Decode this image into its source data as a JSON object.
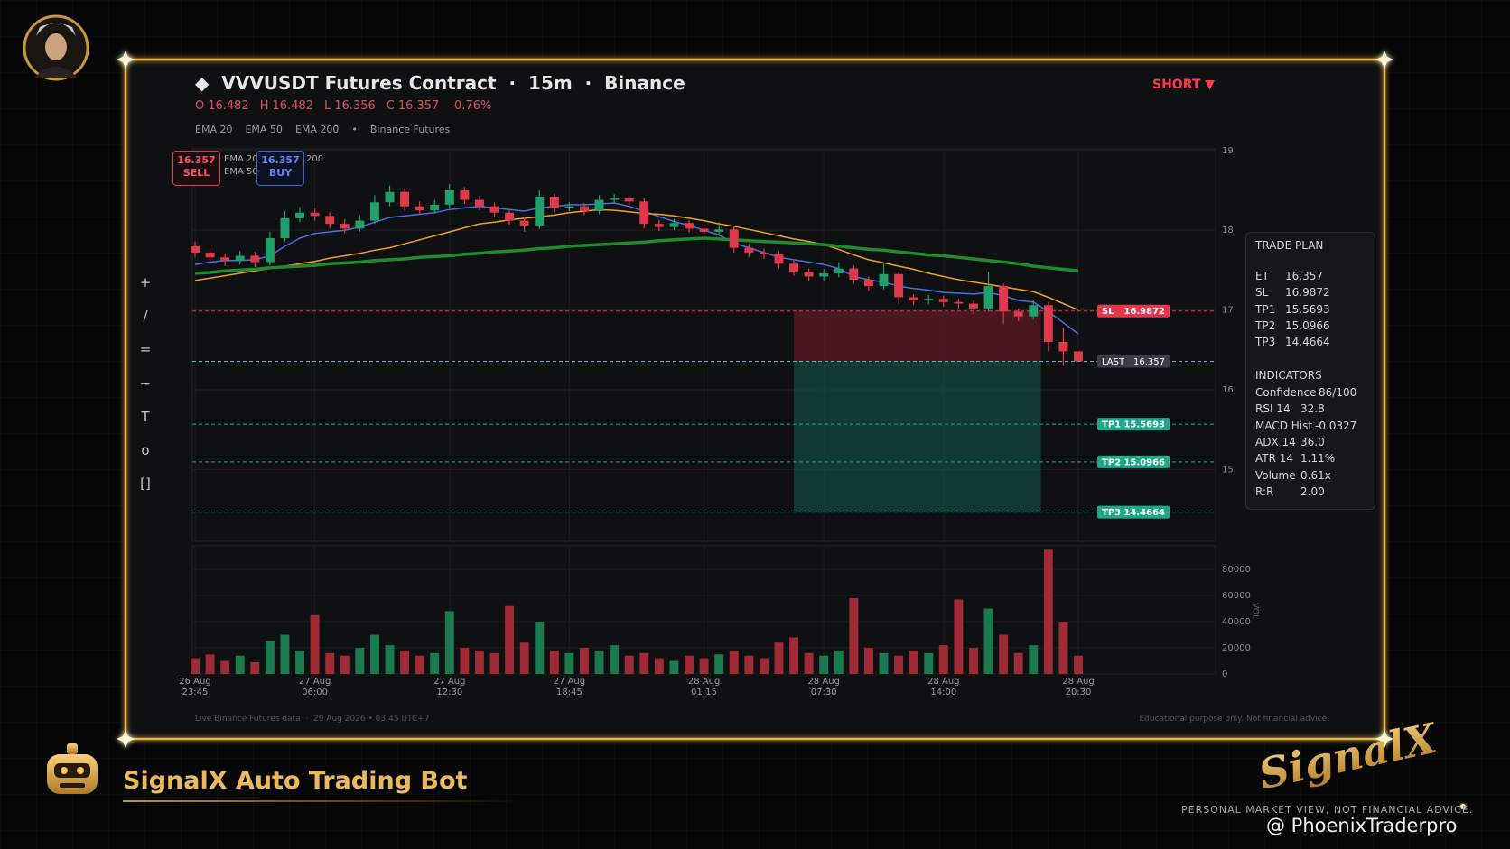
{
  "page": {
    "toolbar": [
      "+",
      "/",
      "=",
      "~",
      "T",
      "o",
      "[]"
    ],
    "side": "SHORT ▼",
    "sell": {
      "price": 16.357,
      "label": "SELL"
    },
    "buy": {
      "price": 16.357,
      "label": "BUY"
    },
    "legend_separator": "•",
    "source": "Binance Futures",
    "footer_left": "Live Binance Futures data  ·  29 Aug 2026 • 03:45 UTC+7",
    "footer_right": "Educational purpose only. Not financial advice.",
    "banner": "SignalX Auto Trading Bot",
    "logo": "SignalX",
    "tagline": "PERSONAL MARKET VIEW, NOT FINANCIAL ADVICE.",
    "watermark": "@ PhoenixTraderpro",
    "trade_plan": {
      "title": "TRADE PLAN",
      "rows": [
        [
          "ET",
          16.357
        ],
        [
          "SL",
          16.9872
        ],
        [
          "TP1",
          15.5693
        ],
        [
          "TP2",
          15.0966
        ],
        [
          "TP3",
          14.4664
        ]
      ]
    },
    "indicators": {
      "title": "INDICATORS",
      "rows": [
        [
          "Confidence",
          "86/100"
        ],
        [
          "RSI 14",
          32.8
        ],
        [
          "MACD Hist",
          -0.0327
        ],
        [
          "ADX 14",
          "36.0"
        ],
        [
          "ATR 14",
          "1.11%"
        ],
        [
          "Volume",
          "0.61x"
        ],
        [
          "R:R",
          "2.00"
        ]
      ]
    }
  },
  "chart_data": {
    "type": "candlestick",
    "title": "◆  VVVUSDT Futures Contract  ·  15m  ·  Binance",
    "ohlc_labels": [
      "O",
      "H",
      "L",
      "C"
    ],
    "change": "-0.76%",
    "categories": [
      "26 Aug 23:45",
      null,
      null,
      null,
      null,
      null,
      null,
      null,
      "27 Aug 06:00",
      null,
      null,
      null,
      null,
      null,
      null,
      null,
      null,
      "27 Aug 12:30",
      null,
      null,
      null,
      null,
      null,
      null,
      null,
      "27 Aug 18:45",
      null,
      null,
      null,
      null,
      null,
      null,
      null,
      null,
      "28 Aug 01:15",
      null,
      null,
      null,
      null,
      null,
      null,
      null,
      "28 Aug 07:30",
      null,
      null,
      null,
      null,
      null,
      null,
      null,
      "28 Aug 14:00",
      null,
      null,
      null,
      null,
      null,
      null,
      null,
      null,
      "28 Aug 20:30"
    ],
    "open": [
      17.8,
      17.72,
      17.66,
      17.62,
      17.68,
      17.6,
      17.9,
      18.15,
      18.22,
      18.18,
      18.08,
      18.02,
      18.12,
      18.35,
      18.48,
      18.3,
      18.25,
      18.32,
      18.5,
      18.38,
      18.3,
      18.22,
      18.12,
      18.06,
      18.42,
      18.28,
      18.3,
      18.24,
      18.38,
      18.4,
      18.36,
      18.08,
      18.04,
      18.09,
      18.02,
      17.98,
      18.01,
      17.78,
      17.72,
      17.7,
      17.58,
      17.48,
      17.42,
      17.46,
      17.52,
      17.38,
      17.3,
      17.45,
      17.16,
      17.12,
      17.14,
      17.1,
      17.08,
      17.02,
      17.3,
      16.98,
      16.92,
      17.06,
      16.6,
      16.482
    ],
    "high": [
      17.86,
      17.78,
      17.71,
      17.74,
      17.73,
      17.98,
      18.24,
      18.29,
      18.27,
      18.23,
      18.14,
      18.19,
      18.44,
      18.56,
      18.52,
      18.36,
      18.38,
      18.58,
      18.54,
      18.43,
      18.35,
      18.27,
      18.17,
      18.5,
      18.46,
      18.35,
      18.34,
      18.44,
      18.45,
      18.44,
      18.4,
      18.13,
      18.14,
      18.13,
      18.07,
      18.1,
      18.05,
      17.83,
      17.77,
      17.74,
      17.62,
      17.52,
      17.51,
      17.6,
      17.56,
      17.42,
      17.58,
      17.48,
      17.2,
      17.19,
      17.18,
      17.14,
      17.12,
      17.48,
      17.33,
      17.02,
      17.12,
      17.1,
      16.78,
      16.482
    ],
    "low": [
      17.66,
      17.6,
      17.55,
      17.57,
      17.54,
      17.56,
      17.86,
      18.1,
      18.12,
      18.02,
      17.96,
      17.98,
      18.08,
      18.3,
      18.24,
      18.2,
      18.21,
      18.28,
      18.33,
      18.25,
      18.16,
      18.07,
      17.98,
      18.02,
      18.22,
      18.24,
      18.19,
      18.2,
      18.33,
      18.31,
      18.02,
      17.99,
      18.0,
      17.97,
      17.92,
      17.94,
      17.72,
      17.66,
      17.64,
      17.52,
      17.43,
      17.36,
      17.37,
      17.41,
      17.33,
      17.24,
      17.26,
      17.08,
      17.06,
      17.07,
      17.04,
      17.02,
      16.95,
      16.98,
      16.82,
      16.86,
      16.88,
      16.48,
      16.3,
      16.356
    ],
    "close": [
      17.72,
      17.66,
      17.62,
      17.68,
      17.6,
      17.9,
      18.15,
      18.22,
      18.18,
      18.08,
      18.02,
      18.12,
      18.35,
      18.48,
      18.3,
      18.25,
      18.32,
      18.5,
      18.38,
      18.3,
      18.22,
      18.12,
      18.06,
      18.42,
      18.28,
      18.3,
      18.24,
      18.38,
      18.4,
      18.36,
      18.08,
      18.04,
      18.09,
      18.02,
      17.98,
      18.01,
      17.78,
      17.72,
      17.7,
      17.58,
      17.48,
      17.42,
      17.46,
      17.52,
      17.38,
      17.3,
      17.45,
      17.16,
      17.12,
      17.14,
      17.1,
      17.08,
      17.02,
      17.3,
      16.98,
      16.92,
      17.06,
      16.6,
      16.482,
      16.357
    ],
    "up_color": "#22a06b",
    "down_color": "#e0394b",
    "series": [
      {
        "name": "EMA 20",
        "color": "#4a6fe0",
        "width": 1.5,
        "values": [
          17.57,
          17.6,
          17.62,
          17.62,
          17.63,
          17.68,
          17.8,
          17.9,
          17.96,
          17.98,
          18.0,
          18.04,
          18.1,
          18.16,
          18.18,
          18.2,
          18.22,
          18.26,
          18.28,
          18.3,
          18.28,
          18.26,
          18.24,
          18.28,
          18.3,
          18.32,
          18.32,
          18.33,
          18.34,
          18.3,
          18.24,
          18.17,
          18.11,
          18.06,
          18.0,
          17.94,
          17.84,
          17.78,
          17.72,
          17.66,
          17.63,
          17.6,
          17.57,
          17.52,
          17.42,
          17.38,
          17.35,
          17.3,
          17.27,
          17.25,
          17.22,
          17.21,
          17.2,
          17.22,
          17.18,
          17.12,
          17.1,
          16.98,
          16.84,
          16.7
        ]
      },
      {
        "name": "EMA 50",
        "color": "#f0a020",
        "width": 1.5,
        "values": [
          17.37,
          17.4,
          17.43,
          17.46,
          17.49,
          17.52,
          17.55,
          17.58,
          17.61,
          17.65,
          17.68,
          17.71,
          17.75,
          17.78,
          17.83,
          17.88,
          17.93,
          17.98,
          18.03,
          18.08,
          18.1,
          18.13,
          18.15,
          18.17,
          18.19,
          18.22,
          18.24,
          18.26,
          18.25,
          18.23,
          18.21,
          18.2,
          18.18,
          18.15,
          18.12,
          18.08,
          18.05,
          18.01,
          17.97,
          17.93,
          17.89,
          17.86,
          17.82,
          17.76,
          17.69,
          17.63,
          17.59,
          17.55,
          17.51,
          17.46,
          17.42,
          17.38,
          17.35,
          17.32,
          17.29,
          17.26,
          17.23,
          17.16,
          17.08,
          17.0
        ]
      },
      {
        "name": "EMA 200",
        "color": "#1f8a2e",
        "width": 3.5,
        "values": [
          17.46,
          17.47,
          17.49,
          17.5,
          17.51,
          17.53,
          17.54,
          17.55,
          17.56,
          17.58,
          17.59,
          17.6,
          17.62,
          17.63,
          17.64,
          17.66,
          17.67,
          17.68,
          17.7,
          17.71,
          17.73,
          17.74,
          17.75,
          17.77,
          17.78,
          17.8,
          17.81,
          17.82,
          17.83,
          17.84,
          17.85,
          17.87,
          17.88,
          17.89,
          17.9,
          17.89,
          17.88,
          17.87,
          17.86,
          17.85,
          17.84,
          17.83,
          17.82,
          17.8,
          17.78,
          17.76,
          17.75,
          17.73,
          17.71,
          17.69,
          17.68,
          17.66,
          17.64,
          17.62,
          17.6,
          17.58,
          17.55,
          17.53,
          17.51,
          17.49
        ]
      }
    ],
    "levels": [
      {
        "name": "SL",
        "value": 16.9872,
        "color": "#e5364a",
        "tag_color": "#e5364a"
      },
      {
        "name": "LAST",
        "value": 16.357,
        "color": "#5fb4c4",
        "tag_color": "#3a3f47"
      },
      {
        "name": "TP1",
        "value": 15.5693,
        "color": "#1ea88a",
        "tag_color": "#1ea88a"
      },
      {
        "name": "TP2",
        "value": 15.0966,
        "color": "#1ea88a",
        "tag_color": "#1ea88a"
      },
      {
        "name": "TP3",
        "value": 14.4664,
        "color": "#1ea88a",
        "tag_color": "#1ea88a"
      }
    ],
    "risk_color": "#7a1e27",
    "reward_color": "#145c50",
    "ylim": [
      14.1,
      19.02
    ],
    "yticks": [
      15,
      16,
      17,
      18,
      19
    ],
    "grid": true,
    "volume": [
      12000,
      15000,
      10000,
      14000,
      9000,
      25000,
      30000,
      18000,
      45000,
      16000,
      14000,
      20000,
      30000,
      22000,
      18000,
      14000,
      16000,
      48000,
      20000,
      18000,
      16000,
      52000,
      24000,
      40000,
      18000,
      16000,
      20000,
      18000,
      22000,
      14000,
      16000,
      12000,
      10000,
      14000,
      12000,
      15000,
      18000,
      14000,
      12000,
      24000,
      28000,
      16000,
      14000,
      18000,
      58000,
      20000,
      16000,
      14000,
      18000,
      16000,
      22000,
      57000,
      20000,
      50000,
      30000,
      16000,
      22000,
      95000,
      40000,
      14000
    ],
    "volume_up_color": "#1b7a4f",
    "volume_down_color": "#a02a36",
    "volume_label": "VOL",
    "volume_ylim": [
      0,
      98000
    ],
    "volume_yticks": [
      0,
      20000,
      40000,
      60000,
      80000
    ]
  }
}
